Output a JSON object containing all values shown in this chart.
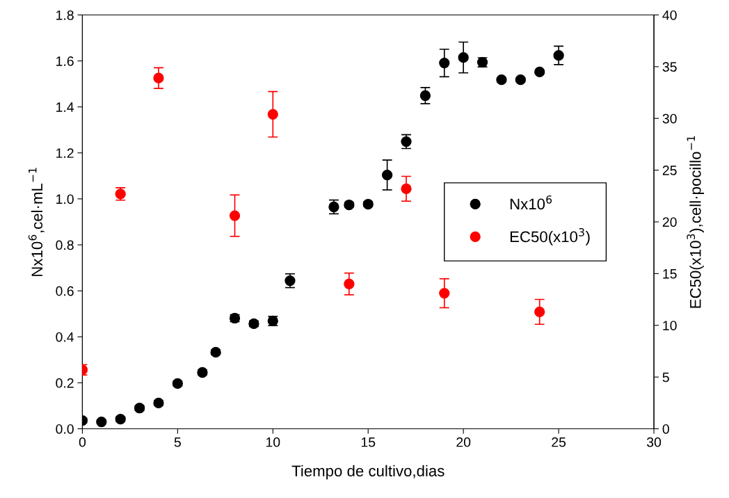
{
  "chart_data": {
    "type": "scatter",
    "xlabel": "Tiempo de cultivo,dias",
    "ylabel": "Nx10$^{6}$,cel·mL$^{−1}$",
    "y2label": "EC50(x10$^{3}$),cell·pocillo$^{−1}$",
    "xlim": [
      0,
      30
    ],
    "xticks": [
      0,
      5,
      10,
      15,
      20,
      25,
      30
    ],
    "ylim": [
      0,
      1.8
    ],
    "yticks": [
      {
        "value": 0,
        "label": "0.0"
      },
      {
        "value": 0.2,
        "label": "0.2"
      },
      {
        "value": 0.4,
        "label": "0.4"
      },
      {
        "value": 0.6,
        "label": "0.6"
      },
      {
        "value": 0.8,
        "label": "0.8"
      },
      {
        "value": 1.0,
        "label": "1.0"
      },
      {
        "value": 1.2,
        "label": "1.2"
      },
      {
        "value": 1.4,
        "label": "1.4"
      },
      {
        "value": 1.6,
        "label": "1.6"
      },
      {
        "value": 1.8,
        "label": "1.8"
      }
    ],
    "y2lim": [
      0,
      40
    ],
    "y2ticks": [
      0,
      5,
      10,
      15,
      20,
      25,
      30,
      35,
      40
    ],
    "marker": "circle",
    "grid": false,
    "legend": "right",
    "series": [
      {
        "name": "Nx10$^{6}$",
        "color": "#000000",
        "x": [
          0,
          1,
          2,
          3,
          4,
          5,
          6.3,
          7,
          8,
          9,
          10,
          10.9,
          13.2,
          14,
          15,
          16,
          17,
          18,
          19,
          20,
          21,
          22,
          23,
          24,
          25
        ],
        "values": [
          0.036,
          0.03,
          0.042,
          0.09,
          0.112,
          0.197,
          0.245,
          0.333,
          0.481,
          0.457,
          0.469,
          0.644,
          0.965,
          0.974,
          0.977,
          1.104,
          1.249,
          1.449,
          1.591,
          1.615,
          1.594,
          1.518,
          1.518,
          1.552,
          1.624
        ],
        "errors": [
          0.01,
          0.008,
          0.01,
          0.01,
          0.01,
          0.01,
          0.01,
          0.01,
          0.015,
          0.012,
          0.02,
          0.03,
          0.03,
          0.01,
          0.01,
          0.065,
          0.03,
          0.035,
          0.06,
          0.067,
          0.02,
          0.005,
          0.005,
          0.008,
          0.04
        ]
      },
      {
        "name": "EC50(x10$^{3}$)",
        "color": "#ff0000",
        "axis": "y2",
        "x": [
          0,
          2,
          4,
          8,
          10,
          14,
          17,
          19,
          24
        ],
        "values": [
          5.7,
          22.7,
          33.9,
          20.6,
          30.4,
          14.0,
          23.2,
          13.1,
          11.3
        ],
        "errors": [
          0.5,
          0.6,
          1.0,
          2.0,
          2.2,
          1.05,
          1.2,
          1.4,
          1.2
        ]
      }
    ]
  }
}
